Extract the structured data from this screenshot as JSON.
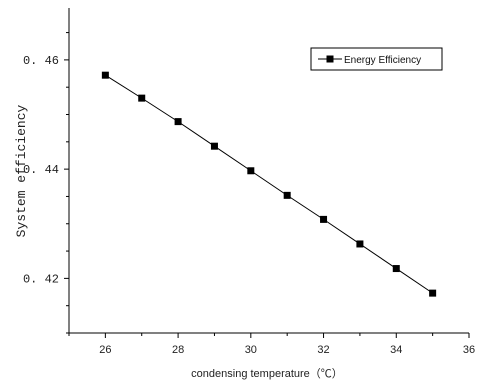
{
  "chart_data": {
    "type": "line",
    "xlabel": "condensing temperature（℃）",
    "ylabel": "System efficiency",
    "xlim": [
      25,
      36
    ],
    "ylim": [
      0.41,
      0.4695
    ],
    "x_ticks": [
      26,
      28,
      30,
      32,
      34,
      36
    ],
    "x_tick_labels": [
      "26",
      "28",
      "30",
      "32",
      "34",
      "36"
    ],
    "y_ticks": [
      0.42,
      0.44,
      0.46
    ],
    "y_tick_labels": [
      "0. 42",
      "0. 44",
      "0. 46"
    ],
    "legend_position": "top-right",
    "grid": false,
    "series": [
      {
        "name": "Energy Efficiency",
        "marker": "square",
        "color": "#000000",
        "x": [
          26,
          27,
          28,
          29,
          30,
          31,
          32,
          33,
          34,
          35
        ],
        "y": [
          0.4572,
          0.453,
          0.4487,
          0.4442,
          0.4397,
          0.4352,
          0.4308,
          0.4263,
          0.4218,
          0.4173
        ]
      }
    ]
  }
}
